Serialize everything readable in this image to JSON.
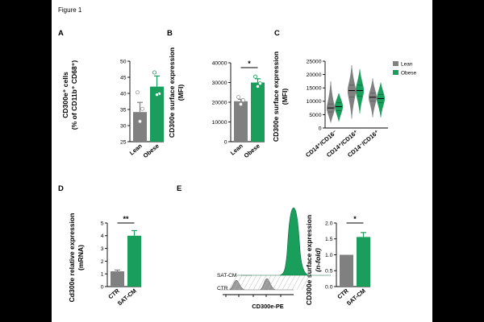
{
  "figure_title": "Figure 1",
  "colors": {
    "lean": "#808080",
    "obese": "#1a9e5c",
    "ctr": "#808080",
    "satcm": "#1a9e5c",
    "background": "#000000",
    "panel": "#ffffff"
  },
  "chart_data": [
    {
      "panel": "A",
      "type": "bar",
      "categories": [
        "Lean",
        "Obese"
      ],
      "values": [
        34.2,
        42.1
      ],
      "errors": [
        3.0,
        3.3
      ],
      "points": [
        [
          40.3,
          35.2,
          31.3
        ],
        [
          46.5,
          39.9,
          39.6
        ]
      ],
      "ylabel_line1": "CD300e⁺ cells",
      "ylabel_line2": "(% of CD11b⁺ CD68⁺)",
      "ylim": [
        25,
        50
      ],
      "yticks": [
        "25",
        "30",
        "35",
        "40",
        "45",
        "50"
      ]
    },
    {
      "panel": "B",
      "type": "bar",
      "categories": [
        "Lean",
        "Obese"
      ],
      "values": [
        20500,
        30000
      ],
      "errors": [
        1000,
        1900
      ],
      "points": [
        [
          22600,
          21000,
          19000
        ],
        [
          33000,
          29500,
          28000
        ]
      ],
      "ylabel_line1": "CD300e surface expression",
      "ylabel_line2": "(MFI)",
      "ylim": [
        0,
        40000
      ],
      "yticks": [
        "0",
        "10000",
        "20000",
        "30000",
        "40000"
      ],
      "significance": "*"
    },
    {
      "panel": "C",
      "type": "violin",
      "groups": [
        "CD14⁺/CD16⁻",
        "CD14⁺/CD16⁺",
        "CD14⁻/CD16⁺"
      ],
      "series": [
        {
          "name": "Lean",
          "medians": [
            7500,
            14000,
            11500
          ],
          "q1": [
            6000,
            11500,
            10000
          ],
          "q3": [
            9000,
            16000,
            13000
          ],
          "min": [
            2000,
            3500,
            4000
          ],
          "max": [
            17500,
            23500,
            18500
          ]
        },
        {
          "name": "Obese",
          "medians": [
            8000,
            14000,
            11000
          ],
          "q1": [
            6500,
            12000,
            9500
          ],
          "q3": [
            9500,
            16000,
            12500
          ],
          "min": [
            2500,
            5500,
            4000
          ],
          "max": [
            13000,
            22000,
            17000
          ]
        }
      ],
      "ylabel_line1": "CD300e surface expression",
      "ylabel_line2": "(MFI)",
      "ylim": [
        0,
        25000
      ],
      "yticks": [
        "0",
        "5000",
        "10000",
        "15000",
        "20000",
        "25000"
      ],
      "legend": [
        "Lean",
        "Obese"
      ]
    },
    {
      "panel": "D",
      "type": "bar",
      "categories": [
        "CTR",
        "SAT-CM"
      ],
      "values": [
        1.2,
        4.0
      ],
      "errors": [
        0.1,
        0.4
      ],
      "ylabel_line1": "Cd300e relative expression",
      "ylabel_line2": "(mRNA)",
      "ylim": [
        0,
        5
      ],
      "yticks": [
        "0",
        "1",
        "2",
        "3",
        "4",
        "5"
      ],
      "significance": "**"
    },
    {
      "panel": "E",
      "type": "histogram",
      "series": [
        "SAT-CM",
        "CTR"
      ],
      "xlabel": "CD300e-PE"
    },
    {
      "panel": "E2",
      "type": "bar",
      "categories": [
        "CTR",
        "SAT-CM"
      ],
      "values": [
        1.0,
        1.56
      ],
      "errors": [
        0.0,
        0.14
      ],
      "ylabel_line1": "CD300e surface expression",
      "ylabel_line2": "(n-fold)",
      "ylim": [
        0,
        2.0
      ],
      "yticks": [
        "0.0",
        "0.5",
        "1.0",
        "1.5",
        "2.0"
      ],
      "significance": "*"
    }
  ]
}
